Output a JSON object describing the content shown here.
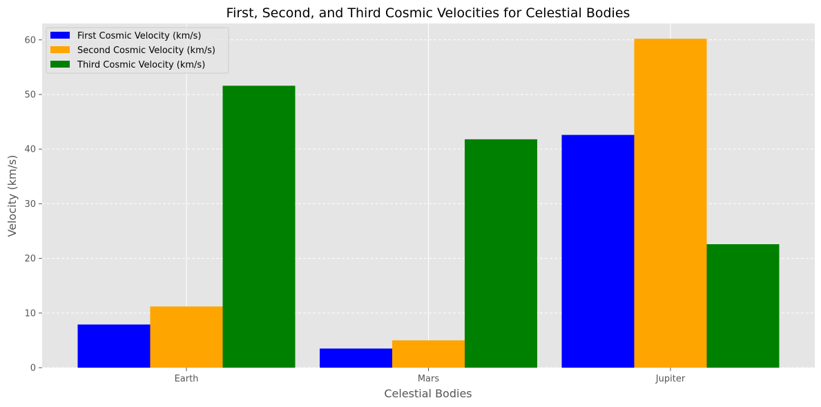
{
  "chart_data": {
    "type": "bar",
    "title": "First, Second, and Third Cosmic Velocities for Celestial Bodies",
    "xlabel": "Celestial Bodies",
    "ylabel": "Velocity (km/s)",
    "categories": [
      "Earth",
      "Mars",
      "Jupiter"
    ],
    "series": [
      {
        "name": "First Cosmic Velocity (km/s)",
        "color": "#0000ff",
        "values": [
          7.9,
          3.5,
          42.6
        ]
      },
      {
        "name": "Second Cosmic Velocity (km/s)",
        "color": "#ffa500",
        "values": [
          11.2,
          5.0,
          60.2
        ]
      },
      {
        "name": "Third Cosmic Velocity (km/s)",
        "color": "#008000",
        "values": [
          51.6,
          41.8,
          22.6
        ]
      }
    ],
    "ylim": [
      0,
      63
    ],
    "yticks": [
      0,
      10,
      20,
      30,
      40,
      50,
      60
    ],
    "grid": true,
    "legend_position": "top-left",
    "background_color": "#e5e5e5"
  }
}
